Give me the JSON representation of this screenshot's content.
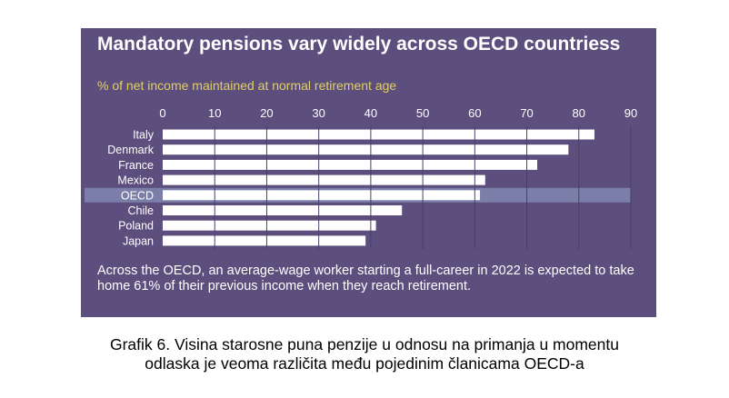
{
  "chart_data": {
    "type": "bar",
    "orientation": "horizontal",
    "title": "Mandatory pensions vary widely across OECD countriess",
    "subtitle": "% of net income maintained at normal retirement age",
    "categories": [
      "Italy",
      "Denmark",
      "France",
      "Mexico",
      "OECD",
      "Chile",
      "Poland",
      "Japan"
    ],
    "values": [
      83,
      78,
      72,
      62,
      61,
      46,
      41,
      39
    ],
    "highlight_category": "OECD",
    "xlim": [
      0,
      90
    ],
    "xticks": [
      "0",
      "10",
      "20",
      "30",
      "40",
      "50",
      "60",
      "70",
      "80",
      "90"
    ],
    "xaxis_position": "top",
    "grid": true,
    "note": "Across the OECD, an average-wage worker starting a full-career in 2022 is expected to take home 61% of their previous income when they reach retirement."
  },
  "colors": {
    "background": "#5c4f7e",
    "bar": "#ffffff",
    "highlight_band": "#7a7ea8",
    "subtitle": "#e2cf62",
    "text": "#ffffff"
  },
  "caption": {
    "line1": "Grafik 6. Visina starosne puna penzije u odnosu na primanja u momentu",
    "line2": "odlaska je veoma različita među pojedinim članicama OECD-a"
  }
}
